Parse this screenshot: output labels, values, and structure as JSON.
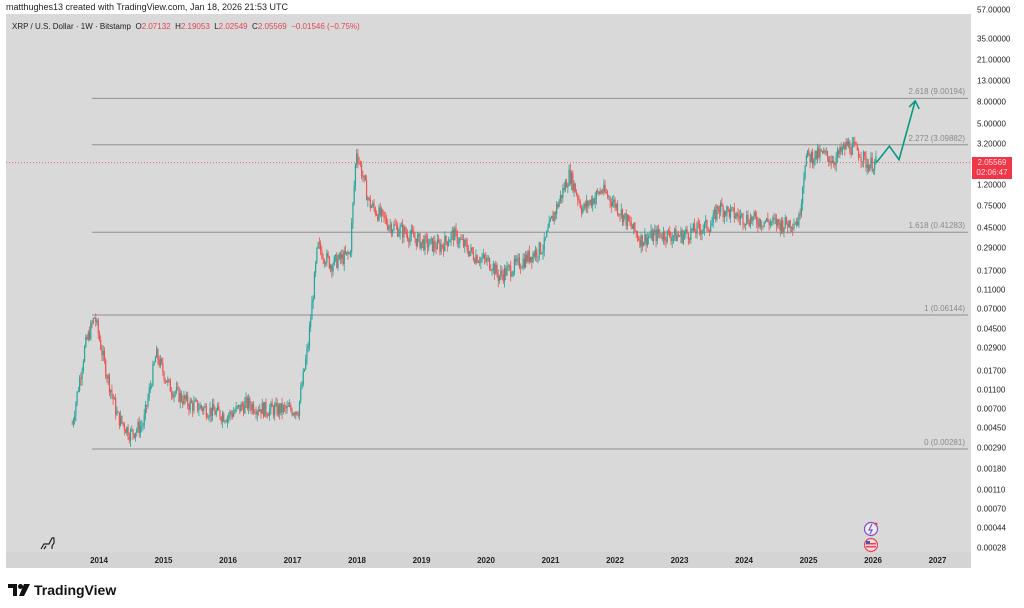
{
  "credit": "matthughes13 created with TradingView.com, Jan 18, 2026 21:53 UTC",
  "legend": {
    "symbol": "XRP / U.S. Dollar · 1W · Bitstamp",
    "o_label": "O",
    "o": "2.07132",
    "h_label": "H",
    "h": "2.19053",
    "l_label": "L",
    "l": "2.02549",
    "c_label": "C",
    "c": "2.05569",
    "change": "−0.01546 (−0.75%)"
  },
  "price_tag": {
    "price": "2.05569",
    "countdown": "02:06:47"
  },
  "brand": "TradingView",
  "colors": {
    "up": "#26a69a",
    "down": "#ef5350",
    "tag": "#f23645",
    "projection": "#089981",
    "fib": "#888888"
  },
  "chart_data": {
    "type": "candlestick",
    "title": "XRP / U.S. Dollar · 1W · Bitstamp",
    "scale": "log",
    "y_ticks": [
      "57.00000",
      "35.00000",
      "21.00000",
      "13.00000",
      "8.00000",
      "5.00000",
      "3.20000",
      "2.05569",
      "1.20000",
      "0.75000",
      "0.45000",
      "0.29000",
      "0.17000",
      "0.11000",
      "0.07000",
      "0.04500",
      "0.02900",
      "0.01700",
      "0.01100",
      "0.00700",
      "0.00450",
      "0.00290",
      "0.00180",
      "0.00110",
      "0.00070",
      "0.00044",
      "0.00028"
    ],
    "x_ticks": [
      "2014",
      "2015",
      "2016",
      "2017",
      "2018",
      "2019",
      "2020",
      "2021",
      "2022",
      "2023",
      "2024",
      "2025",
      "2026",
      "2027"
    ],
    "fib_levels": [
      {
        "label": "0 (0.00281)",
        "ratio": 0,
        "price": 0.00281
      },
      {
        "label": "1 (0.06144)",
        "ratio": 1,
        "price": 0.06144
      },
      {
        "label": "1.618 (0.41283)",
        "ratio": 1.618,
        "price": 0.41283
      },
      {
        "label": "2.272 (3.09882)",
        "ratio": 2.272,
        "price": 3.09882
      },
      {
        "label": "2.618 (9.00194)",
        "ratio": 2.618,
        "price": 9.00194
      }
    ],
    "last_price": 2.05569,
    "path": [
      [
        2013.6,
        0.005
      ],
      [
        2013.8,
        0.03
      ],
      [
        2013.95,
        0.06
      ],
      [
        2014.1,
        0.02
      ],
      [
        2014.3,
        0.006
      ],
      [
        2014.5,
        0.004
      ],
      [
        2014.7,
        0.005
      ],
      [
        2014.9,
        0.025
      ],
      [
        2015.1,
        0.012
      ],
      [
        2015.4,
        0.008
      ],
      [
        2015.7,
        0.007
      ],
      [
        2016.0,
        0.006
      ],
      [
        2016.3,
        0.008
      ],
      [
        2016.6,
        0.007
      ],
      [
        2016.9,
        0.007
      ],
      [
        2017.1,
        0.007
      ],
      [
        2017.25,
        0.03
      ],
      [
        2017.4,
        0.3
      ],
      [
        2017.6,
        0.2
      ],
      [
        2017.9,
        0.25
      ],
      [
        2018.0,
        2.8
      ],
      [
        2018.2,
        0.8
      ],
      [
        2018.5,
        0.5
      ],
      [
        2018.8,
        0.4
      ],
      [
        2019.0,
        0.33
      ],
      [
        2019.3,
        0.3
      ],
      [
        2019.5,
        0.4
      ],
      [
        2019.8,
        0.25
      ],
      [
        2020.1,
        0.2
      ],
      [
        2020.2,
        0.15
      ],
      [
        2020.5,
        0.2
      ],
      [
        2020.9,
        0.3
      ],
      [
        2021.0,
        0.5
      ],
      [
        2021.3,
        1.6
      ],
      [
        2021.5,
        0.7
      ],
      [
        2021.8,
        1.1
      ],
      [
        2022.0,
        0.8
      ],
      [
        2022.4,
        0.35
      ],
      [
        2022.7,
        0.4
      ],
      [
        2023.0,
        0.38
      ],
      [
        2023.5,
        0.5
      ],
      [
        2023.6,
        0.75
      ],
      [
        2023.9,
        0.6
      ],
      [
        2024.2,
        0.55
      ],
      [
        2024.6,
        0.5
      ],
      [
        2024.85,
        0.55
      ],
      [
        2024.95,
        2.3
      ],
      [
        2025.2,
        2.5
      ],
      [
        2025.4,
        2.2
      ],
      [
        2025.6,
        3.1
      ],
      [
        2025.8,
        2.6
      ],
      [
        2025.9,
        2.0
      ],
      [
        2026.05,
        2.06
      ]
    ],
    "projection": [
      [
        2026.05,
        2.06
      ],
      [
        2026.25,
        3.0
      ],
      [
        2026.4,
        2.2
      ],
      [
        2026.65,
        8.5
      ]
    ]
  }
}
